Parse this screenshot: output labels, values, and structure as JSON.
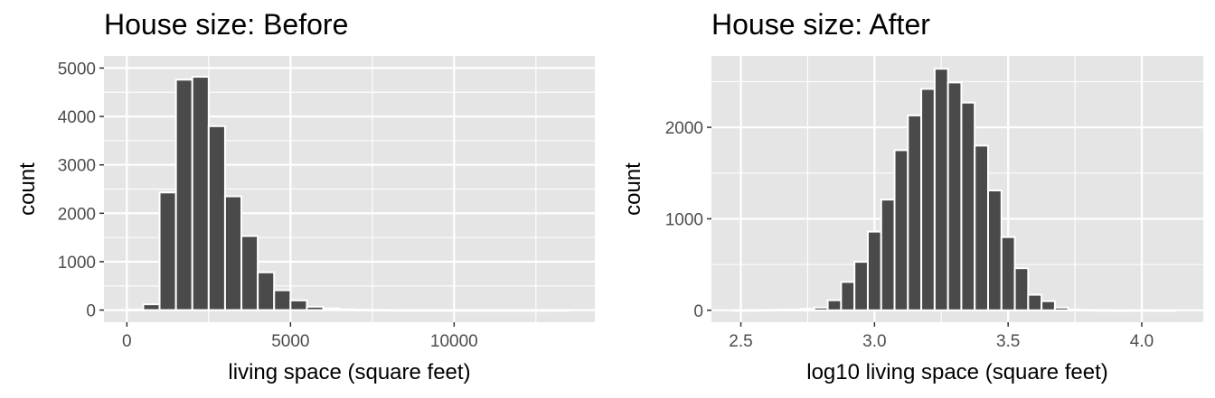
{
  "chart_data": [
    {
      "type": "bar",
      "title": "House size: Before",
      "xlabel": "living space (square feet)",
      "ylabel": "count",
      "xlim": [
        -700,
        14300
      ],
      "ylim": [
        -250,
        5250
      ],
      "xticks": [
        0,
        5000,
        10000
      ],
      "xtick_labels": [
        "0",
        "5000",
        "10000"
      ],
      "yticks": [
        0,
        1000,
        2000,
        3000,
        4000,
        5000
      ],
      "ytick_labels": [
        "0",
        "1000",
        "2000",
        "3000",
        "4000",
        "5000"
      ],
      "grid": true,
      "bin_width": 500,
      "bins": [
        {
          "x0": 0,
          "x1": 500,
          "count": 10
        },
        {
          "x0": 500,
          "x1": 1000,
          "count": 120
        },
        {
          "x0": 1000,
          "x1": 1500,
          "count": 2430
        },
        {
          "x0": 1500,
          "x1": 2000,
          "count": 4760
        },
        {
          "x0": 2000,
          "x1": 2500,
          "count": 4820
        },
        {
          "x0": 2500,
          "x1": 3000,
          "count": 3800
        },
        {
          "x0": 3000,
          "x1": 3500,
          "count": 2350
        },
        {
          "x0": 3500,
          "x1": 4000,
          "count": 1530
        },
        {
          "x0": 4000,
          "x1": 4500,
          "count": 780
        },
        {
          "x0": 4500,
          "x1": 5000,
          "count": 410
        },
        {
          "x0": 5000,
          "x1": 5500,
          "count": 200
        },
        {
          "x0": 5500,
          "x1": 6000,
          "count": 70
        },
        {
          "x0": 6000,
          "x1": 6500,
          "count": 35
        },
        {
          "x0": 6500,
          "x1": 7000,
          "count": 15
        },
        {
          "x0": 7000,
          "x1": 7500,
          "count": 8
        },
        {
          "x0": 7500,
          "x1": 8000,
          "count": 4
        },
        {
          "x0": 8000,
          "x1": 8500,
          "count": 2
        },
        {
          "x0": 8500,
          "x1": 9000,
          "count": 1
        },
        {
          "x0": 9000,
          "x1": 9500,
          "count": 1
        },
        {
          "x0": 9500,
          "x1": 10000,
          "count": 1
        },
        {
          "x0": 10000,
          "x1": 10500,
          "count": 0
        },
        {
          "x0": 10500,
          "x1": 11000,
          "count": 0
        },
        {
          "x0": 11000,
          "x1": 11500,
          "count": 0
        },
        {
          "x0": 11500,
          "x1": 12000,
          "count": 0
        },
        {
          "x0": 12000,
          "x1": 12500,
          "count": 0
        },
        {
          "x0": 12500,
          "x1": 13000,
          "count": 0
        },
        {
          "x0": 13000,
          "x1": 13500,
          "count": 1
        }
      ]
    },
    {
      "type": "bar",
      "title": "House size: After",
      "xlabel": "log10 living space (square feet)",
      "ylabel": "count",
      "xlim": [
        2.39,
        4.23
      ],
      "ylim": [
        -130,
        2780
      ],
      "xticks": [
        2.5,
        3.0,
        3.5,
        4.0
      ],
      "xtick_labels": [
        "2.5",
        "3.0",
        "3.5",
        "4.0"
      ],
      "yticks": [
        0,
        1000,
        2000
      ],
      "ytick_labels": [
        "0",
        "1000",
        "2000"
      ],
      "grid": true,
      "bin_width": 0.05,
      "bins": [
        {
          "x0": 2.475,
          "x1": 2.525,
          "count": 2
        },
        {
          "x0": 2.525,
          "x1": 2.575,
          "count": 3
        },
        {
          "x0": 2.575,
          "x1": 2.625,
          "count": 4
        },
        {
          "x0": 2.625,
          "x1": 2.675,
          "count": 6
        },
        {
          "x0": 2.675,
          "x1": 2.725,
          "count": 8
        },
        {
          "x0": 2.725,
          "x1": 2.775,
          "count": 15
        },
        {
          "x0": 2.775,
          "x1": 2.825,
          "count": 30
        },
        {
          "x0": 2.825,
          "x1": 2.875,
          "count": 110
        },
        {
          "x0": 2.875,
          "x1": 2.925,
          "count": 310
        },
        {
          "x0": 2.925,
          "x1": 2.975,
          "count": 530
        },
        {
          "x0": 2.975,
          "x1": 3.025,
          "count": 860
        },
        {
          "x0": 3.025,
          "x1": 3.075,
          "count": 1210
        },
        {
          "x0": 3.075,
          "x1": 3.125,
          "count": 1750
        },
        {
          "x0": 3.125,
          "x1": 3.175,
          "count": 2130
        },
        {
          "x0": 3.175,
          "x1": 3.225,
          "count": 2420
        },
        {
          "x0": 3.225,
          "x1": 3.275,
          "count": 2640
        },
        {
          "x0": 3.275,
          "x1": 3.325,
          "count": 2490
        },
        {
          "x0": 3.325,
          "x1": 3.375,
          "count": 2270
        },
        {
          "x0": 3.375,
          "x1": 3.425,
          "count": 1800
        },
        {
          "x0": 3.425,
          "x1": 3.475,
          "count": 1310
        },
        {
          "x0": 3.475,
          "x1": 3.525,
          "count": 800
        },
        {
          "x0": 3.525,
          "x1": 3.575,
          "count": 460
        },
        {
          "x0": 3.575,
          "x1": 3.625,
          "count": 170
        },
        {
          "x0": 3.625,
          "x1": 3.675,
          "count": 100
        },
        {
          "x0": 3.675,
          "x1": 3.725,
          "count": 30
        },
        {
          "x0": 3.725,
          "x1": 3.775,
          "count": 8
        },
        {
          "x0": 3.775,
          "x1": 3.825,
          "count": 4
        },
        {
          "x0": 3.825,
          "x1": 3.875,
          "count": 2
        },
        {
          "x0": 3.875,
          "x1": 3.925,
          "count": 1
        },
        {
          "x0": 3.925,
          "x1": 3.975,
          "count": 1
        },
        {
          "x0": 3.975,
          "x1": 4.025,
          "count": 1
        },
        {
          "x0": 4.025,
          "x1": 4.075,
          "count": 1
        },
        {
          "x0": 4.075,
          "x1": 4.125,
          "count": 1
        }
      ]
    }
  ],
  "colors": {
    "panel_background": "#e5e5e5",
    "gridline": "#ffffff",
    "bar_fill": "#4a4a4a",
    "bar_outline": "#ffffff",
    "tick_label": "#4d4d4d",
    "text": "#000000"
  }
}
